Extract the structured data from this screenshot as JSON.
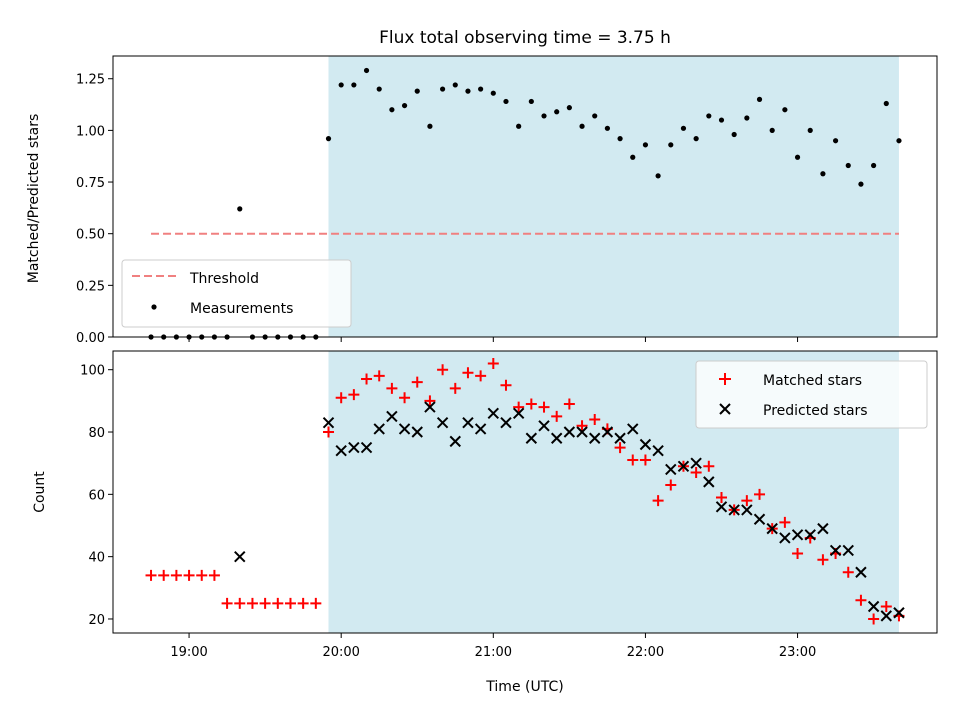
{
  "chart_data": [
    {
      "type": "scatter",
      "title": "Flux total observing time = 3.75 h",
      "ylabel": "Matched/Predicted stars",
      "xlabel": "",
      "xlim": [
        "18:30",
        "23:55"
      ],
      "ylim": [
        0,
        1.36
      ],
      "y_ticks": [
        0.0,
        0.25,
        0.5,
        0.75,
        1.0,
        1.25
      ],
      "y_tick_labels": [
        "0.00",
        "0.25",
        "0.50",
        "0.75",
        "1.00",
        "1.25"
      ],
      "x_ticks": [
        "19:00",
        "20:00",
        "21:00",
        "22:00",
        "23:00"
      ],
      "x_tick_labels_shown": false,
      "shaded_span": {
        "from": "19:55",
        "to": "23:40",
        "color": "#add8e6"
      },
      "threshold": {
        "name": "Threshold",
        "value": 0.5,
        "from": "18:45",
        "to": "23:40",
        "color": "#f08080",
        "style": "dashed"
      },
      "legend": {
        "placement": "lower-left",
        "entries": [
          "Threshold",
          "Measurements"
        ]
      },
      "series": [
        {
          "name": "Measurements",
          "marker": "dot",
          "color": "#000000",
          "x": [
            "18:45",
            "18:50",
            "18:55",
            "19:00",
            "19:05",
            "19:10",
            "19:15",
            "19:20",
            "19:25",
            "19:30",
            "19:35",
            "19:40",
            "19:45",
            "19:50",
            "19:55",
            "20:00",
            "20:05",
            "20:10",
            "20:15",
            "20:20",
            "20:25",
            "20:30",
            "20:35",
            "20:40",
            "20:45",
            "20:50",
            "20:55",
            "21:00",
            "21:05",
            "21:10",
            "21:15",
            "21:20",
            "21:25",
            "21:30",
            "21:35",
            "21:40",
            "21:45",
            "21:50",
            "21:55",
            "22:00",
            "22:05",
            "22:10",
            "22:15",
            "22:20",
            "22:25",
            "22:30",
            "22:35",
            "22:40",
            "22:45",
            "22:50",
            "22:55",
            "23:00",
            "23:05",
            "23:10",
            "23:15",
            "23:20",
            "23:25",
            "23:30",
            "23:35",
            "23:40"
          ],
          "y": [
            0,
            0,
            0,
            0,
            0,
            0,
            0,
            0.62,
            0,
            0,
            0,
            0,
            0,
            0,
            0.96,
            1.22,
            1.22,
            1.29,
            1.2,
            1.1,
            1.12,
            1.19,
            1.02,
            1.2,
            1.22,
            1.19,
            1.2,
            1.18,
            1.14,
            1.02,
            1.14,
            1.07,
            1.09,
            1.11,
            1.02,
            1.07,
            1.01,
            0.96,
            0.87,
            0.93,
            0.78,
            0.93,
            1.01,
            0.96,
            1.07,
            1.05,
            0.98,
            1.06,
            1.15,
            1.0,
            1.1,
            0.87,
            1.0,
            0.79,
            0.95,
            0.83,
            0.74,
            0.83,
            1.13,
            0.95
          ]
        }
      ]
    },
    {
      "type": "scatter",
      "title": "",
      "ylabel": "Count",
      "xlabel": "Time (UTC)",
      "xlim": [
        "18:30",
        "23:55"
      ],
      "ylim": [
        15.5,
        106
      ],
      "y_ticks": [
        20,
        40,
        60,
        80,
        100
      ],
      "y_tick_labels": [
        "20",
        "40",
        "60",
        "80",
        "100"
      ],
      "x_ticks": [
        "19:00",
        "20:00",
        "21:00",
        "22:00",
        "23:00"
      ],
      "x_tick_labels": [
        "19:00",
        "20:00",
        "21:00",
        "22:00",
        "23:00"
      ],
      "shaded_span": {
        "from": "19:55",
        "to": "23:40",
        "color": "#add8e6"
      },
      "legend": {
        "placement": "upper-right",
        "entries": [
          "Matched stars",
          "Predicted stars"
        ]
      },
      "series": [
        {
          "name": "Matched stars",
          "marker": "plus",
          "color": "#ff0000",
          "x": [
            "18:45",
            "18:50",
            "18:55",
            "19:00",
            "19:05",
            "19:10",
            "19:15",
            "19:20",
            "19:25",
            "19:30",
            "19:35",
            "19:40",
            "19:45",
            "19:50",
            "19:55",
            "20:00",
            "20:05",
            "20:10",
            "20:15",
            "20:20",
            "20:25",
            "20:30",
            "20:35",
            "20:40",
            "20:45",
            "20:50",
            "20:55",
            "21:00",
            "21:05",
            "21:10",
            "21:15",
            "21:20",
            "21:25",
            "21:30",
            "21:35",
            "21:40",
            "21:45",
            "21:50",
            "21:55",
            "22:00",
            "22:05",
            "22:10",
            "22:15",
            "22:20",
            "22:25",
            "22:30",
            "22:35",
            "22:40",
            "22:45",
            "22:50",
            "22:55",
            "23:00",
            "23:05",
            "23:10",
            "23:15",
            "23:20",
            "23:25",
            "23:30",
            "23:35",
            "23:40"
          ],
          "y": [
            34,
            34,
            34,
            34,
            34,
            34,
            25,
            25,
            25,
            25,
            25,
            25,
            25,
            25,
            80,
            91,
            92,
            97,
            98,
            94,
            91,
            96,
            90,
            100,
            94,
            99,
            98,
            102,
            95,
            88,
            89,
            88,
            85,
            89,
            82,
            84,
            81,
            75,
            71,
            71,
            58,
            63,
            69,
            67,
            69,
            59,
            55,
            58,
            60,
            49,
            51,
            41,
            46,
            39,
            41,
            35,
            26,
            20,
            24,
            21
          ]
        },
        {
          "name": "Predicted stars",
          "marker": "x",
          "color": "#000000",
          "x": [
            "19:20",
            "19:55",
            "20:00",
            "20:05",
            "20:10",
            "20:15",
            "20:20",
            "20:25",
            "20:30",
            "20:35",
            "20:40",
            "20:45",
            "20:50",
            "20:55",
            "21:00",
            "21:05",
            "21:10",
            "21:15",
            "21:20",
            "21:25",
            "21:30",
            "21:35",
            "21:40",
            "21:45",
            "21:50",
            "21:55",
            "22:00",
            "22:05",
            "22:10",
            "22:15",
            "22:20",
            "22:25",
            "22:30",
            "22:35",
            "22:40",
            "22:45",
            "22:50",
            "22:55",
            "23:00",
            "23:05",
            "23:10",
            "23:15",
            "23:20",
            "23:25",
            "23:30",
            "23:35",
            "23:40"
          ],
          "y": [
            40,
            83,
            74,
            75,
            75,
            81,
            85,
            81,
            80,
            88,
            83,
            77,
            83,
            81,
            86,
            83,
            86,
            78,
            82,
            78,
            80,
            80,
            78,
            80,
            78,
            81,
            76,
            74,
            68,
            69,
            70,
            64,
            56,
            55,
            55,
            52,
            49,
            46,
            47,
            47,
            49,
            42,
            42,
            35,
            24,
            21,
            22
          ]
        }
      ]
    }
  ]
}
